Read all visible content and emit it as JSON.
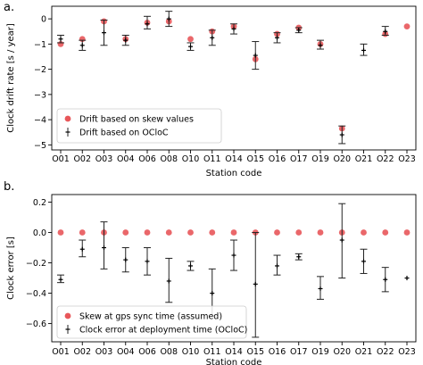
{
  "chart_data": [
    {
      "type": "scatter",
      "panel_label": "a.",
      "xlabel": "Station code",
      "ylabel": "Clock drift rate [s / year]",
      "categories": [
        "O01",
        "O02",
        "O03",
        "O04",
        "O06",
        "O08",
        "O10",
        "O11",
        "O14",
        "O15",
        "O16",
        "O17",
        "O19",
        "O20",
        "O21",
        "O22",
        "O23"
      ],
      "ylim": [
        -5.2,
        0.5
      ],
      "yticks": [
        0,
        -1,
        -2,
        -3,
        -4,
        -5
      ],
      "legend_position": "lower-left",
      "series": [
        {
          "name": "Drift based on skew values",
          "marker": "red-circle",
          "values": [
            -1.0,
            -0.8,
            -0.1,
            -0.8,
            -0.15,
            -0.1,
            -0.8,
            -0.5,
            -0.3,
            -1.6,
            -0.6,
            -0.35,
            -1.0,
            -4.35,
            null,
            -0.6,
            -0.3
          ]
        },
        {
          "name": "Drift based on OCloC",
          "marker": "errorbar",
          "values": [
            -0.8,
            -1.05,
            -0.55,
            -0.85,
            -0.2,
            0.0,
            -1.1,
            -0.75,
            -0.4,
            -1.45,
            -0.75,
            -0.45,
            -1.05,
            -4.6,
            -1.25,
            -0.5,
            null
          ],
          "err_low": [
            -0.95,
            -1.25,
            -1.05,
            -1.05,
            -0.4,
            -0.3,
            -1.25,
            -1.05,
            -0.6,
            -2.0,
            -0.95,
            -0.55,
            -1.2,
            -4.95,
            -1.45,
            -0.65,
            null
          ],
          "err_high": [
            -0.65,
            -0.85,
            -0.05,
            -0.65,
            0.1,
            0.3,
            -0.95,
            -0.45,
            -0.2,
            -0.9,
            -0.55,
            -0.35,
            -0.85,
            -4.25,
            -1.0,
            -0.3,
            null
          ]
        }
      ]
    },
    {
      "type": "scatter",
      "panel_label": "b.",
      "xlabel": "Station code",
      "ylabel": "Clock error [s]",
      "categories": [
        "O01",
        "O02",
        "O03",
        "O04",
        "O06",
        "O08",
        "O10",
        "O11",
        "O14",
        "O15",
        "O16",
        "O17",
        "O19",
        "O20",
        "O21",
        "O22",
        "O23"
      ],
      "ylim": [
        -0.72,
        0.25
      ],
      "yticks": [
        0.2,
        0.0,
        -0.2,
        -0.4,
        -0.6
      ],
      "legend_position": "lower-left",
      "series": [
        {
          "name": "Skew at gps sync time (assumed)",
          "marker": "red-circle",
          "values": [
            0,
            0,
            0,
            0,
            0,
            0,
            0,
            0,
            0,
            0,
            0,
            0,
            0,
            0,
            0,
            0,
            0
          ]
        },
        {
          "name": "Clock error at deployment time (OCloC)",
          "marker": "errorbar",
          "values": [
            -0.31,
            -0.11,
            -0.1,
            -0.18,
            -0.19,
            -0.32,
            -0.22,
            -0.4,
            -0.15,
            -0.34,
            -0.22,
            -0.16,
            -0.37,
            -0.05,
            -0.19,
            -0.31,
            -0.3
          ],
          "err_low": [
            -0.33,
            -0.16,
            -0.24,
            -0.26,
            -0.28,
            -0.46,
            -0.25,
            -0.55,
            -0.25,
            -0.69,
            -0.28,
            -0.18,
            -0.44,
            -0.3,
            -0.27,
            -0.39,
            null
          ],
          "err_high": [
            -0.28,
            -0.05,
            0.07,
            -0.1,
            -0.1,
            -0.17,
            -0.19,
            -0.24,
            -0.05,
            0.0,
            -0.15,
            -0.14,
            -0.29,
            0.19,
            -0.11,
            -0.23,
            null
          ]
        }
      ]
    }
  ]
}
